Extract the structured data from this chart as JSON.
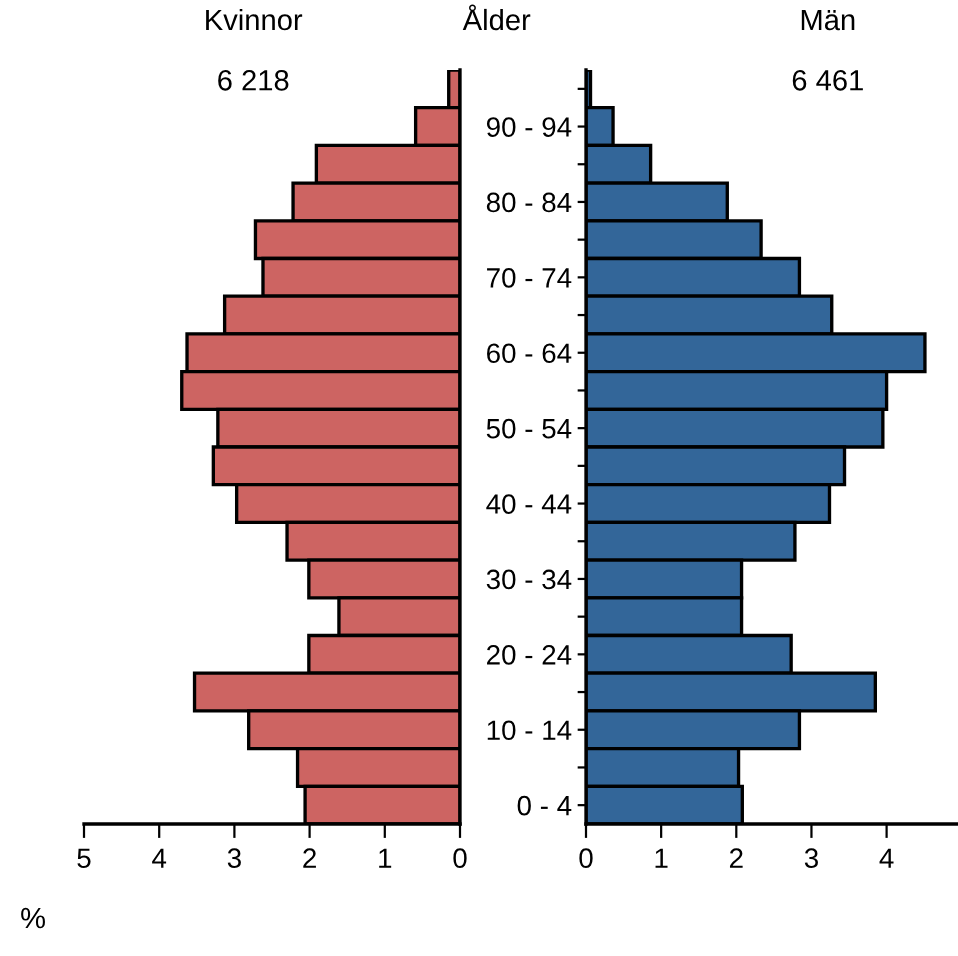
{
  "chart_data": [
    {
      "type": "bar",
      "orientation": "horizontal",
      "title": "Kvinnor",
      "subtitle": "6 218",
      "xlabel": "%",
      "categories": [
        null,
        null,
        null,
        null,
        null,
        null,
        null,
        null,
        null,
        null,
        null,
        null,
        null,
        null,
        null,
        null,
        null,
        null,
        null,
        null
      ],
      "series": [
        {
          "color": "#cd6462",
          "values": [
            0.15,
            0.59,
            1.91,
            2.22,
            2.72,
            2.62,
            3.13,
            3.63,
            3.7,
            3.22,
            3.28,
            2.97,
            2.3,
            2.01,
            1.61,
            2.01,
            3.53,
            2.81,
            2.16,
            2.06
          ]
        }
      ],
      "xlim": [
        5,
        0
      ],
      "xticks": [
        5,
        4,
        3,
        2,
        1,
        0
      ],
      "tick_labels": "x",
      "grid": false,
      "legend": false
    },
    {
      "type": "bar",
      "orientation": "horizontal",
      "title": "Män",
      "subtitle": "6 461",
      "ylabel": "Ålder",
      "categories": [
        null,
        "90 - 94",
        null,
        "80 - 84",
        null,
        "70 - 74",
        null,
        "60 - 64",
        null,
        "50 - 54",
        null,
        "40 - 44",
        null,
        "30 - 34",
        null,
        "20 - 24",
        null,
        "10 - 14",
        null,
        "0 - 4"
      ],
      "series": [
        {
          "color": "#336699",
          "values": [
            0.06,
            0.36,
            0.86,
            1.88,
            2.33,
            2.84,
            3.27,
            4.51,
            4.0,
            3.95,
            3.44,
            3.24,
            2.78,
            2.07,
            2.07,
            2.73,
            3.85,
            2.84,
            2.03,
            2.08
          ]
        }
      ],
      "xlim": [
        0,
        4.95
      ],
      "xticks": [
        0,
        1,
        2,
        3,
        4
      ],
      "grid": false,
      "legend": false
    }
  ]
}
